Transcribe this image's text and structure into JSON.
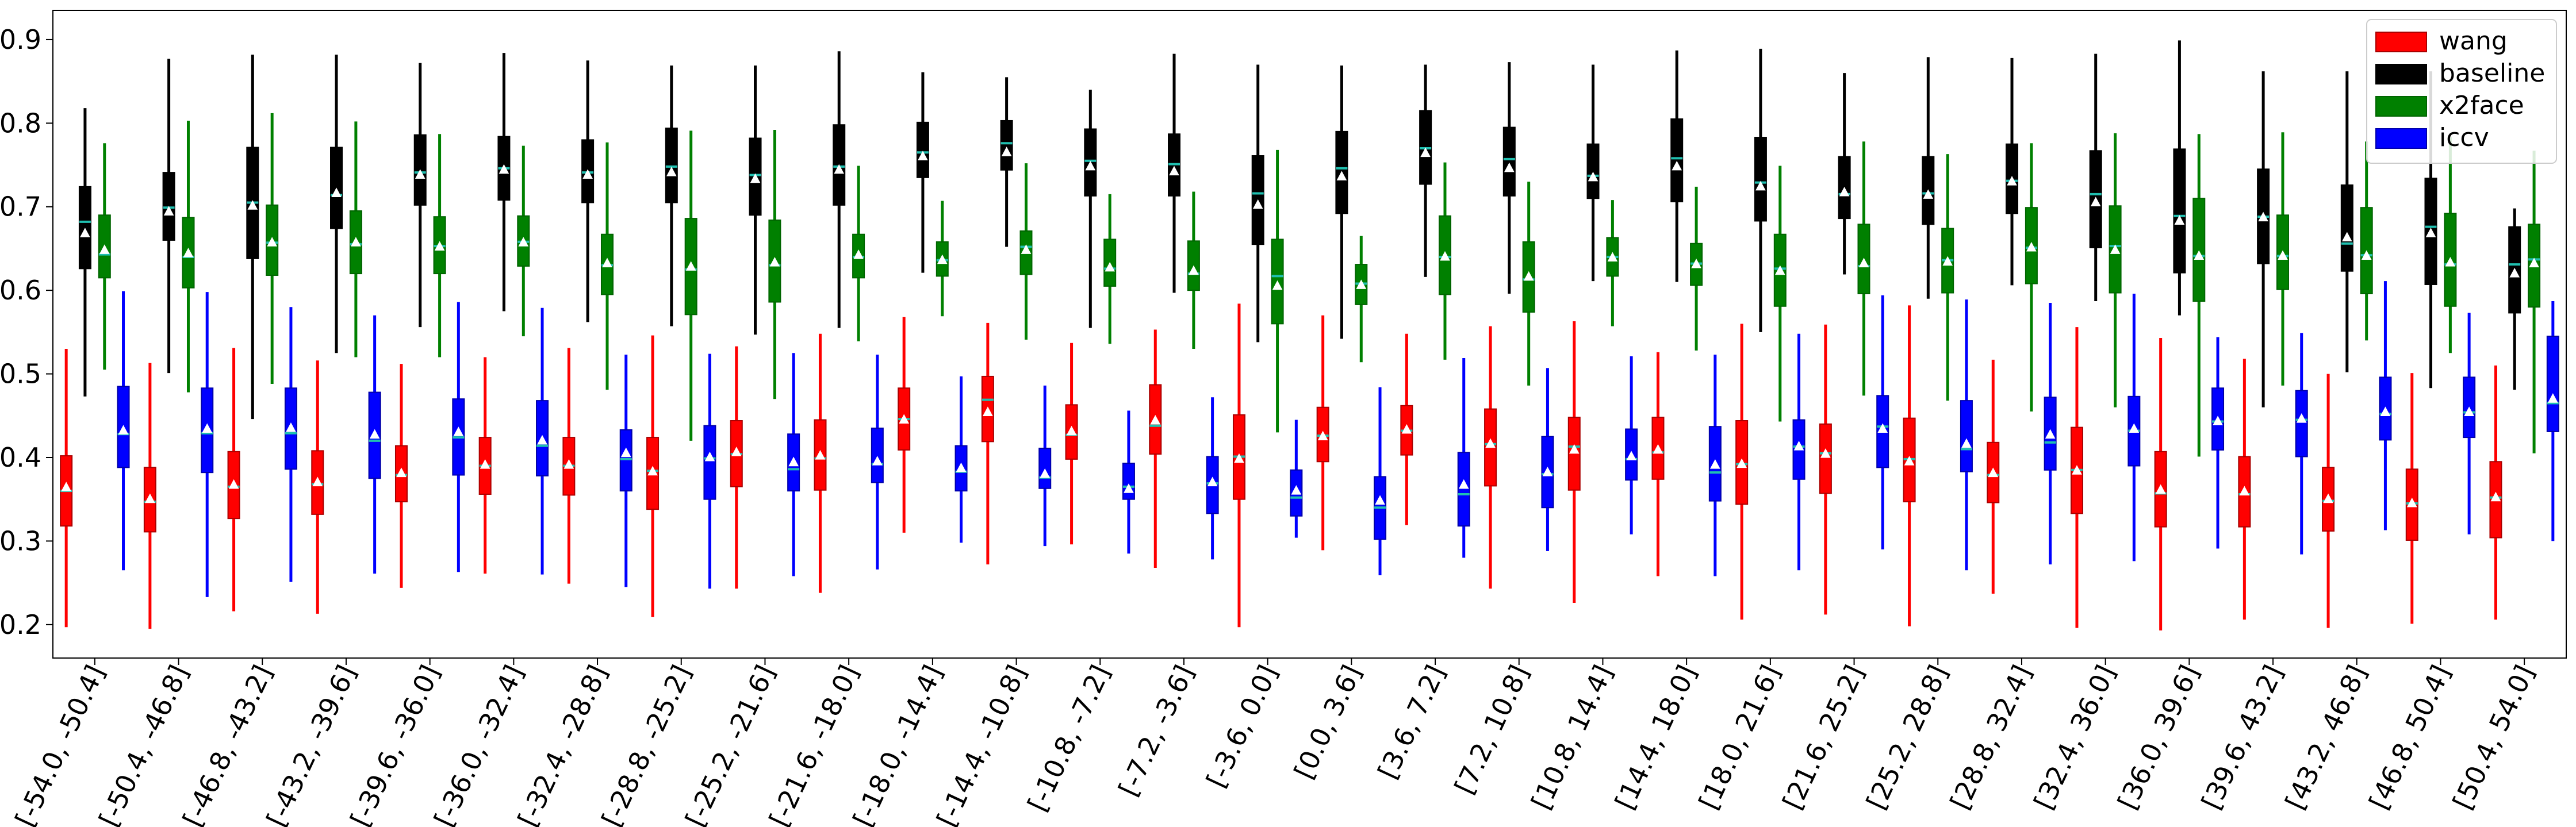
{
  "chart_data": {
    "type": "boxplot",
    "categories": [
      "[-54.0, -50.4]",
      "[-50.4, -46.8]",
      "[-46.8, -43.2]",
      "[-43.2, -39.6]",
      "[-39.6, -36.0]",
      "[-36.0, -32.4]",
      "[-32.4, -28.8]",
      "[-28.8, -25.2]",
      "[-25.2, -21.6]",
      "[-21.6, -18.0]",
      "[-18.0, -14.4]",
      "[-14.4, -10.8]",
      "[-10.8, -7.2]",
      "[-7.2, -3.6]",
      "[-3.6, 0.0]",
      "[0.0, 3.6]",
      "[3.6, 7.2]",
      "[7.2, 10.8]",
      "[10.8, 14.4]",
      "[14.4, 18.0]",
      "[18.0, 21.6]",
      "[21.6, 25.2]",
      "[25.2, 28.8]",
      "[28.8, 32.4]",
      "[32.4, 36.0]",
      "[36.0, 39.6]",
      "[39.6, 43.2]",
      "[43.2, 46.8]",
      "[46.8, 50.4]",
      "[50.4, 54.0]"
    ],
    "ylim": [
      0.16,
      0.935
    ],
    "yticks": [
      "0.2",
      "0.3",
      "0.4",
      "0.5",
      "0.6",
      "0.7",
      "0.8",
      "0.9"
    ],
    "grid": false,
    "legend_position": "top-right",
    "series": [
      {
        "name": "wang",
        "color": "#ff0000",
        "edge": "#aa0000",
        "boxes": [
          [
            0.197,
            0.318,
            0.36,
            0.402,
            0.53,
            0.364
          ],
          [
            0.195,
            0.311,
            0.347,
            0.388,
            0.513,
            0.35
          ],
          [
            0.216,
            0.327,
            0.365,
            0.407,
            0.531,
            0.367
          ],
          [
            0.213,
            0.332,
            0.368,
            0.408,
            0.516,
            0.37
          ],
          [
            0.244,
            0.347,
            0.379,
            0.414,
            0.512,
            0.381
          ],
          [
            0.261,
            0.356,
            0.39,
            0.424,
            0.52,
            0.391
          ],
          [
            0.249,
            0.355,
            0.39,
            0.424,
            0.531,
            0.391
          ],
          [
            0.209,
            0.338,
            0.384,
            0.424,
            0.546,
            0.383
          ],
          [
            0.243,
            0.365,
            0.404,
            0.444,
            0.533,
            0.406
          ],
          [
            0.238,
            0.361,
            0.399,
            0.445,
            0.548,
            0.402
          ],
          [
            0.31,
            0.409,
            0.446,
            0.483,
            0.568,
            0.445
          ],
          [
            0.272,
            0.419,
            0.469,
            0.497,
            0.561,
            0.454
          ],
          [
            0.296,
            0.398,
            0.427,
            0.463,
            0.537,
            0.431
          ],
          [
            0.268,
            0.404,
            0.438,
            0.487,
            0.553,
            0.444
          ],
          [
            0.197,
            0.35,
            0.401,
            0.451,
            0.584,
            0.398
          ],
          [
            0.289,
            0.395,
            0.426,
            0.46,
            0.57,
            0.425
          ],
          [
            0.319,
            0.403,
            0.432,
            0.462,
            0.548,
            0.433
          ],
          [
            0.243,
            0.366,
            0.416,
            0.458,
            0.557,
            0.416
          ],
          [
            0.226,
            0.361,
            0.413,
            0.448,
            0.563,
            0.409
          ],
          [
            0.258,
            0.374,
            0.406,
            0.448,
            0.526,
            0.409
          ],
          [
            0.206,
            0.344,
            0.392,
            0.444,
            0.56,
            0.392
          ],
          [
            0.212,
            0.357,
            0.405,
            0.44,
            0.559,
            0.404
          ],
          [
            0.198,
            0.347,
            0.398,
            0.447,
            0.582,
            0.395
          ],
          [
            0.237,
            0.346,
            0.379,
            0.418,
            0.517,
            0.381
          ],
          [
            0.196,
            0.333,
            0.385,
            0.436,
            0.556,
            0.384
          ],
          [
            0.193,
            0.317,
            0.357,
            0.407,
            0.543,
            0.361
          ],
          [
            0.206,
            0.317,
            0.356,
            0.401,
            0.518,
            0.359
          ],
          [
            0.196,
            0.312,
            0.348,
            0.388,
            0.5,
            0.35
          ],
          [
            0.201,
            0.301,
            0.345,
            0.386,
            0.501,
            0.345
          ],
          [
            0.206,
            0.304,
            0.352,
            0.395,
            0.51,
            0.352
          ]
        ]
      },
      {
        "name": "baseline",
        "color": "#000000",
        "edge": "#000000",
        "boxes": [
          [
            0.473,
            0.626,
            0.682,
            0.724,
            0.818,
            0.668
          ],
          [
            0.501,
            0.66,
            0.699,
            0.741,
            0.877,
            0.694
          ],
          [
            0.446,
            0.638,
            0.705,
            0.771,
            0.882,
            0.701
          ],
          [
            0.525,
            0.674,
            0.714,
            0.771,
            0.882,
            0.716
          ],
          [
            0.556,
            0.702,
            0.741,
            0.786,
            0.872,
            0.738
          ],
          [
            0.575,
            0.708,
            0.746,
            0.784,
            0.884,
            0.744
          ],
          [
            0.562,
            0.705,
            0.741,
            0.78,
            0.875,
            0.738
          ],
          [
            0.557,
            0.705,
            0.748,
            0.794,
            0.869,
            0.741
          ],
          [
            0.547,
            0.69,
            0.738,
            0.782,
            0.869,
            0.733
          ],
          [
            0.555,
            0.702,
            0.748,
            0.798,
            0.886,
            0.744
          ],
          [
            0.621,
            0.735,
            0.765,
            0.801,
            0.861,
            0.76
          ],
          [
            0.652,
            0.744,
            0.776,
            0.803,
            0.855,
            0.765
          ],
          [
            0.555,
            0.713,
            0.755,
            0.793,
            0.84,
            0.748
          ],
          [
            0.597,
            0.713,
            0.751,
            0.787,
            0.883,
            0.742
          ],
          [
            0.538,
            0.655,
            0.716,
            0.761,
            0.87,
            0.702
          ],
          [
            0.542,
            0.692,
            0.746,
            0.79,
            0.869,
            0.736
          ],
          [
            0.616,
            0.727,
            0.77,
            0.815,
            0.87,
            0.764
          ],
          [
            0.596,
            0.713,
            0.757,
            0.795,
            0.873,
            0.746
          ],
          [
            0.611,
            0.71,
            0.737,
            0.775,
            0.87,
            0.735
          ],
          [
            0.61,
            0.706,
            0.758,
            0.805,
            0.887,
            0.748
          ],
          [
            0.55,
            0.683,
            0.729,
            0.783,
            0.889,
            0.724
          ],
          [
            0.619,
            0.686,
            0.715,
            0.76,
            0.86,
            0.717
          ],
          [
            0.59,
            0.679,
            0.716,
            0.76,
            0.879,
            0.714
          ],
          [
            0.606,
            0.692,
            0.731,
            0.775,
            0.878,
            0.73
          ],
          [
            0.587,
            0.651,
            0.715,
            0.767,
            0.883,
            0.705
          ],
          [
            0.57,
            0.621,
            0.689,
            0.769,
            0.899,
            0.683
          ],
          [
            0.46,
            0.632,
            0.688,
            0.745,
            0.862,
            0.687
          ],
          [
            0.502,
            0.623,
            0.656,
            0.726,
            0.862,
            0.663
          ],
          [
            0.483,
            0.607,
            0.676,
            0.734,
            0.862,
            0.668
          ],
          [
            0.481,
            0.573,
            0.631,
            0.676,
            0.698,
            0.62
          ]
        ]
      },
      {
        "name": "x2face",
        "color": "#008000",
        "edge": "#006400",
        "boxes": [
          [
            0.505,
            0.615,
            0.643,
            0.69,
            0.776,
            0.648
          ],
          [
            0.478,
            0.603,
            0.64,
            0.687,
            0.803,
            0.644
          ],
          [
            0.488,
            0.618,
            0.657,
            0.702,
            0.812,
            0.657
          ],
          [
            0.52,
            0.62,
            0.655,
            0.695,
            0.802,
            0.657
          ],
          [
            0.52,
            0.62,
            0.653,
            0.688,
            0.787,
            0.652
          ],
          [
            0.545,
            0.629,
            0.658,
            0.689,
            0.773,
            0.657
          ],
          [
            0.481,
            0.595,
            0.63,
            0.667,
            0.777,
            0.632
          ],
          [
            0.42,
            0.571,
            0.625,
            0.686,
            0.791,
            0.628
          ],
          [
            0.47,
            0.586,
            0.63,
            0.684,
            0.792,
            0.633
          ],
          [
            0.539,
            0.615,
            0.64,
            0.667,
            0.749,
            0.642
          ],
          [
            0.569,
            0.617,
            0.636,
            0.658,
            0.707,
            0.636
          ],
          [
            0.541,
            0.619,
            0.652,
            0.671,
            0.752,
            0.648
          ],
          [
            0.536,
            0.605,
            0.626,
            0.661,
            0.715,
            0.627
          ],
          [
            0.53,
            0.6,
            0.62,
            0.659,
            0.718,
            0.623
          ],
          [
            0.43,
            0.56,
            0.617,
            0.661,
            0.768,
            0.605
          ],
          [
            0.514,
            0.583,
            0.608,
            0.631,
            0.665,
            0.606
          ],
          [
            0.517,
            0.595,
            0.64,
            0.689,
            0.753,
            0.64
          ],
          [
            0.486,
            0.574,
            0.613,
            0.658,
            0.73,
            0.616
          ],
          [
            0.557,
            0.617,
            0.64,
            0.663,
            0.708,
            0.639
          ],
          [
            0.528,
            0.606,
            0.632,
            0.656,
            0.724,
            0.631
          ],
          [
            0.443,
            0.581,
            0.626,
            0.667,
            0.749,
            0.623
          ],
          [
            0.474,
            0.596,
            0.629,
            0.679,
            0.778,
            0.632
          ],
          [
            0.468,
            0.597,
            0.636,
            0.674,
            0.763,
            0.634
          ],
          [
            0.455,
            0.608,
            0.651,
            0.699,
            0.776,
            0.651
          ],
          [
            0.46,
            0.597,
            0.653,
            0.701,
            0.788,
            0.648
          ],
          [
            0.401,
            0.587,
            0.641,
            0.71,
            0.787,
            0.641
          ],
          [
            0.486,
            0.601,
            0.641,
            0.69,
            0.789,
            0.641
          ],
          [
            0.54,
            0.596,
            0.642,
            0.699,
            0.778,
            0.641
          ],
          [
            0.525,
            0.581,
            0.631,
            0.692,
            0.783,
            0.633
          ],
          [
            0.405,
            0.58,
            0.637,
            0.679,
            0.767,
            0.632
          ]
        ]
      },
      {
        "name": "iccv",
        "color": "#0000ff",
        "edge": "#0000aa",
        "boxes": [
          [
            0.265,
            0.388,
            0.428,
            0.485,
            0.599,
            0.432
          ],
          [
            0.233,
            0.382,
            0.429,
            0.483,
            0.598,
            0.434
          ],
          [
            0.251,
            0.386,
            0.429,
            0.483,
            0.58,
            0.435
          ],
          [
            0.261,
            0.375,
            0.42,
            0.478,
            0.57,
            0.427
          ],
          [
            0.263,
            0.379,
            0.424,
            0.47,
            0.586,
            0.43
          ],
          [
            0.26,
            0.378,
            0.414,
            0.468,
            0.579,
            0.42
          ],
          [
            0.245,
            0.36,
            0.398,
            0.433,
            0.523,
            0.405
          ],
          [
            0.243,
            0.35,
            0.399,
            0.438,
            0.524,
            0.4
          ],
          [
            0.258,
            0.36,
            0.386,
            0.428,
            0.525,
            0.394
          ],
          [
            0.266,
            0.37,
            0.392,
            0.435,
            0.523,
            0.395
          ],
          [
            0.298,
            0.36,
            0.383,
            0.414,
            0.497,
            0.387
          ],
          [
            0.294,
            0.363,
            0.376,
            0.411,
            0.486,
            0.38
          ],
          [
            0.285,
            0.35,
            0.365,
            0.393,
            0.456,
            0.362
          ],
          [
            0.278,
            0.333,
            0.369,
            0.401,
            0.472,
            0.37
          ],
          [
            0.304,
            0.33,
            0.352,
            0.385,
            0.445,
            0.36
          ],
          [
            0.259,
            0.302,
            0.34,
            0.377,
            0.484,
            0.348
          ],
          [
            0.28,
            0.318,
            0.356,
            0.406,
            0.519,
            0.367
          ],
          [
            0.288,
            0.34,
            0.38,
            0.425,
            0.507,
            0.382
          ],
          [
            0.308,
            0.373,
            0.398,
            0.434,
            0.521,
            0.401
          ],
          [
            0.258,
            0.348,
            0.382,
            0.437,
            0.523,
            0.391
          ],
          [
            0.265,
            0.374,
            0.413,
            0.445,
            0.548,
            0.413
          ],
          [
            0.29,
            0.388,
            0.437,
            0.474,
            0.594,
            0.434
          ],
          [
            0.265,
            0.383,
            0.41,
            0.468,
            0.589,
            0.416
          ],
          [
            0.272,
            0.385,
            0.418,
            0.472,
            0.585,
            0.427
          ],
          [
            0.276,
            0.39,
            0.432,
            0.473,
            0.596,
            0.434
          ],
          [
            0.291,
            0.409,
            0.443,
            0.483,
            0.544,
            0.443
          ],
          [
            0.284,
            0.401,
            0.445,
            0.48,
            0.549,
            0.446
          ],
          [
            0.313,
            0.421,
            0.452,
            0.496,
            0.611,
            0.454
          ],
          [
            0.308,
            0.424,
            0.454,
            0.496,
            0.573,
            0.454
          ],
          [
            0.3,
            0.431,
            0.465,
            0.545,
            0.587,
            0.47
          ]
        ]
      }
    ]
  }
}
